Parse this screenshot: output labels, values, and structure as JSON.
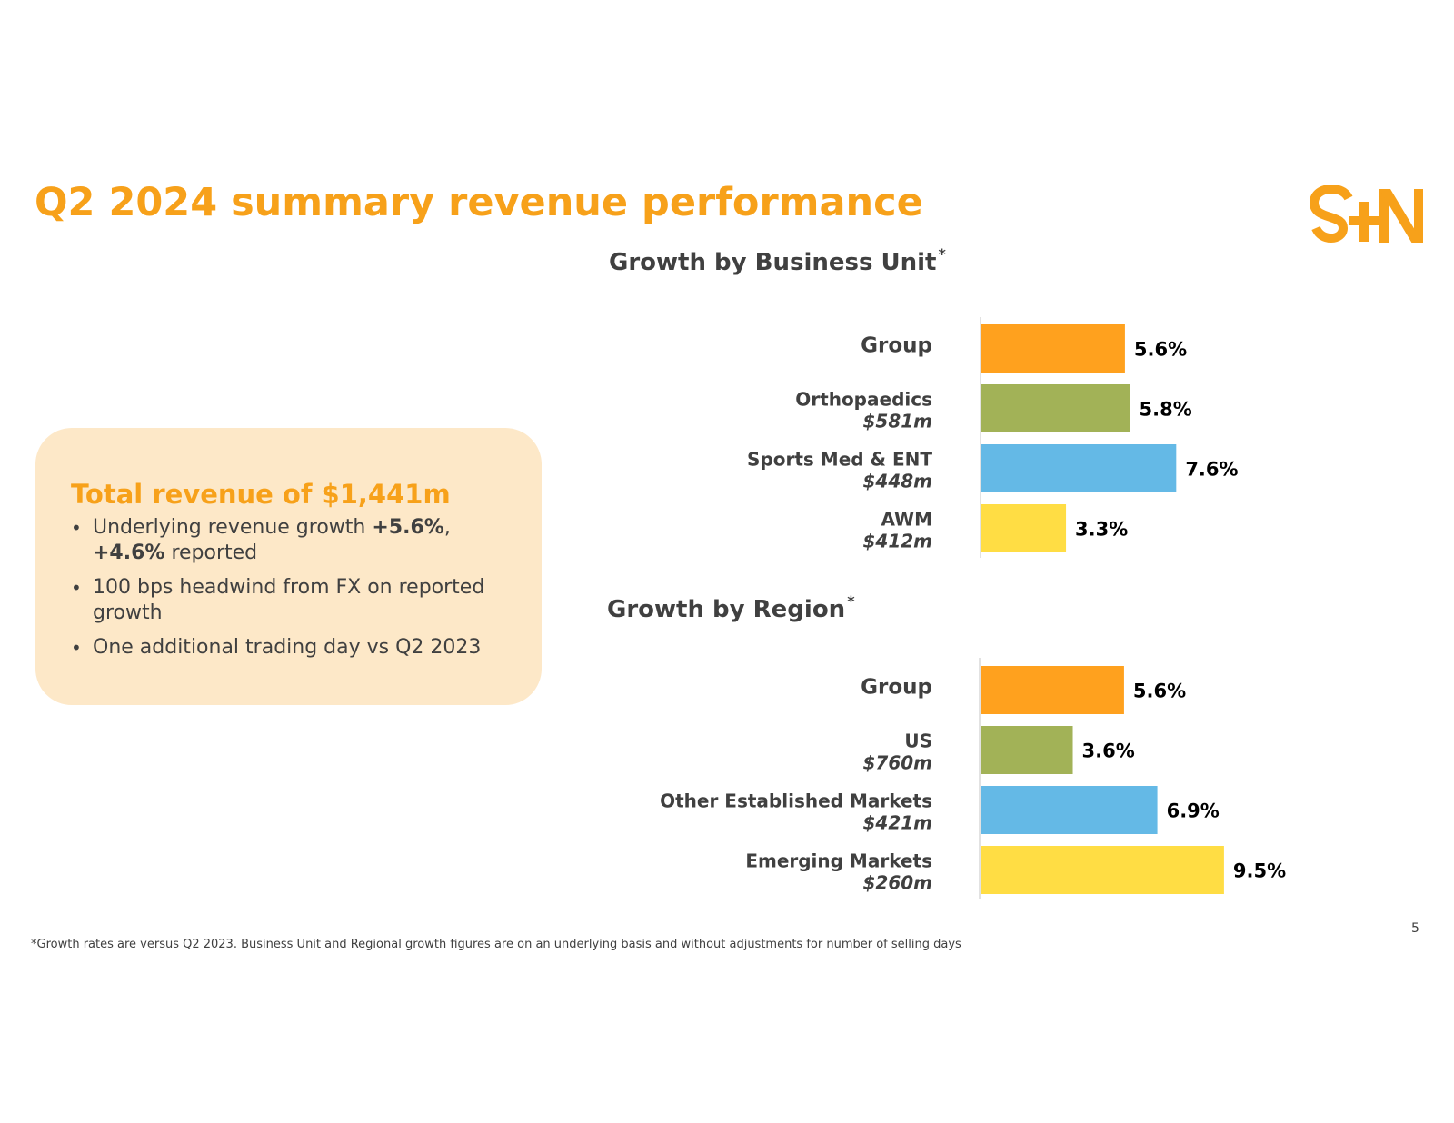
{
  "slide": {
    "title": "Q2 2024 summary revenue performance",
    "brand_color": "#F7A11A",
    "page_number": "5",
    "footnote": "*Growth rates are versus Q2 2023. Business Unit and Regional growth figures are on an underlying basis and without adjustments for number of selling days"
  },
  "logo": {
    "icon": "smith-nephew-logo-icon",
    "letters": "S+N"
  },
  "summary": {
    "title": "Total revenue of $1,441m",
    "bullets": [
      {
        "pre": "Underlying revenue growth ",
        "bold1": "+5.6%",
        "mid": ", ",
        "bold2": "+4.6%",
        "post": " reported"
      },
      {
        "text": "100 bps headwind from FX on reported growth"
      },
      {
        "text": "One additional trading day vs Q2 2023"
      }
    ]
  },
  "sections": {
    "business_unit_title": "Growth by Business Unit",
    "region_title": "Growth by Region",
    "asterisk": "*"
  },
  "colors": {
    "group": "#FFA11E",
    "green": "#A2B257",
    "blue": "#64B9E6",
    "yellow": "#FFDD44"
  },
  "chart_data": [
    {
      "type": "bar",
      "orientation": "horizontal",
      "title": "Growth by Business Unit*",
      "categories": [
        "Group",
        "Orthopaedics",
        "Sports Med & ENT",
        "AWM"
      ],
      "sublabels": [
        "",
        "$581m",
        "$448m",
        "$412m"
      ],
      "values": [
        5.6,
        5.8,
        7.6,
        3.3
      ],
      "value_labels": [
        "5.6%",
        "5.8%",
        "7.6%",
        "3.3%"
      ],
      "unit": "%",
      "xlim": [
        0,
        10
      ],
      "colors": [
        "#FFA11E",
        "#A2B257",
        "#64B9E6",
        "#FFDD44"
      ]
    },
    {
      "type": "bar",
      "orientation": "horizontal",
      "title": "Growth by Region*",
      "categories": [
        "Group",
        "US",
        "Other Established Markets",
        "Emerging Markets"
      ],
      "sublabels": [
        "",
        "$760m",
        "$421m",
        "$260m"
      ],
      "values": [
        5.6,
        3.6,
        6.9,
        9.5
      ],
      "value_labels": [
        "5.6%",
        "3.6%",
        "6.9%",
        "9.5%"
      ],
      "unit": "%",
      "xlim": [
        0,
        10
      ],
      "colors": [
        "#FFA11E",
        "#A2B257",
        "#64B9E6",
        "#FFDD44"
      ]
    }
  ]
}
